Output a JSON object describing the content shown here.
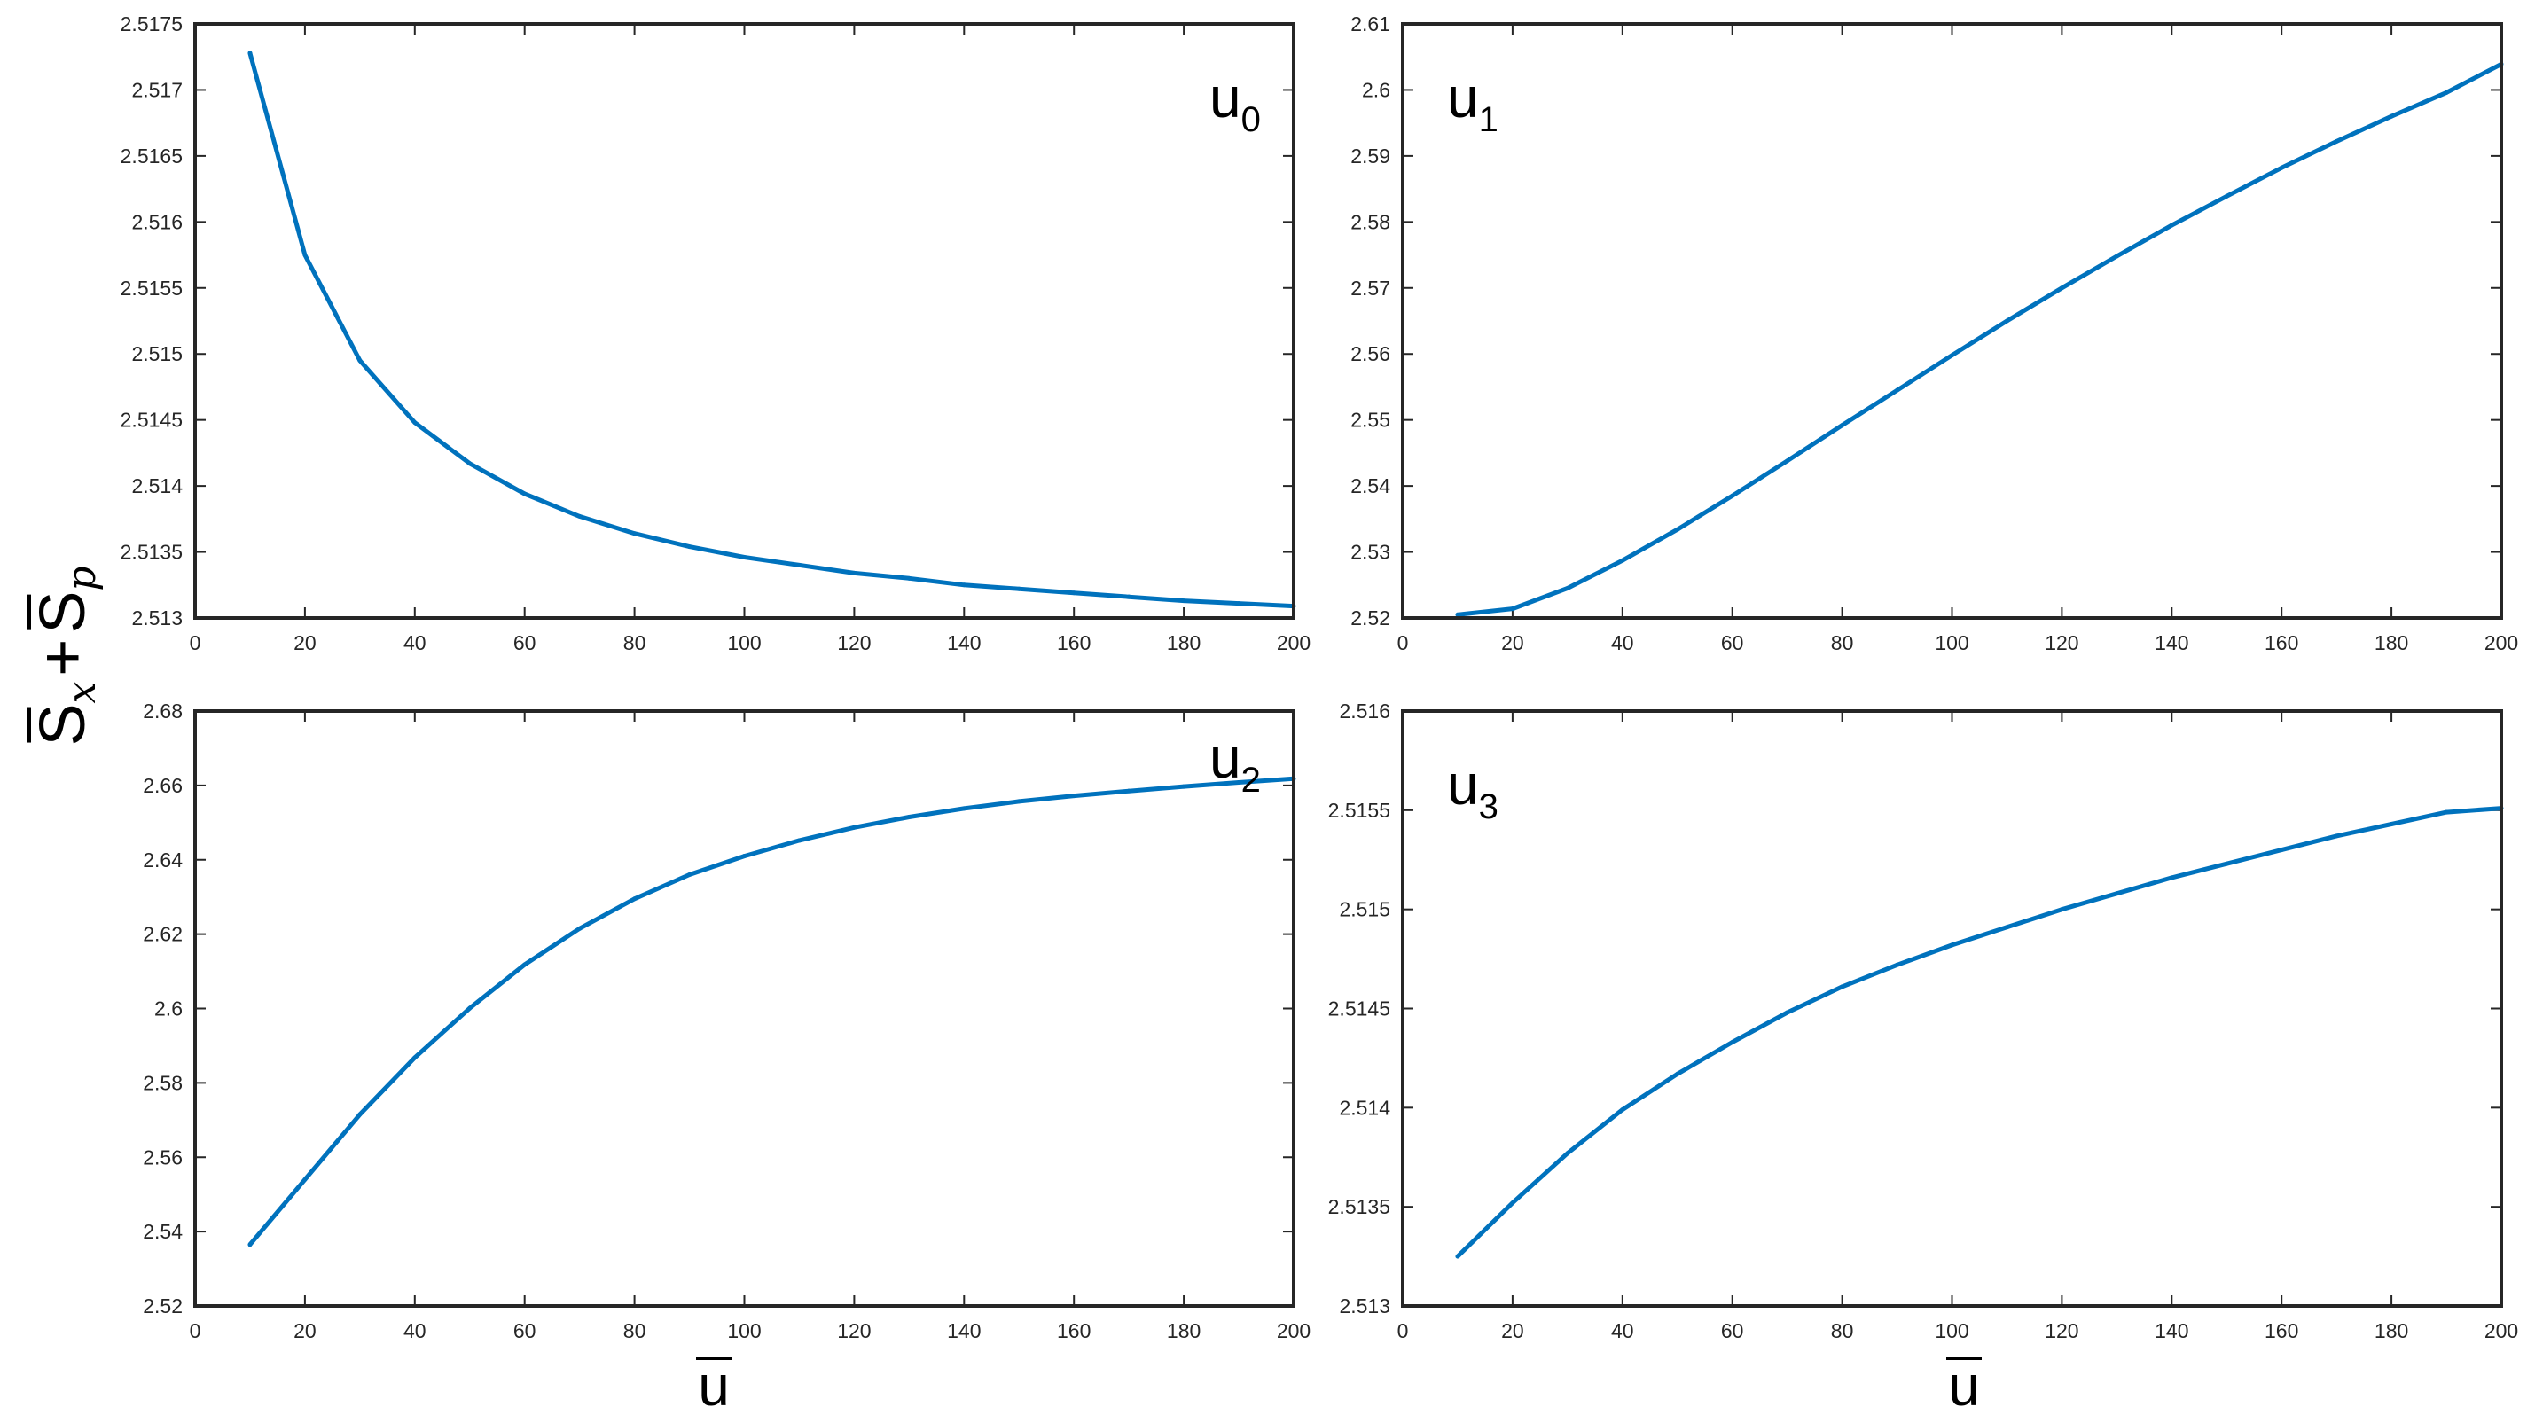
{
  "figure": {
    "ylabel": {
      "S1": "S",
      "sub1": "x",
      "plus": "+",
      "S2": "S",
      "sub2": "p"
    },
    "xlabel": "u",
    "line_color": "#0072BD"
  },
  "chart_data": [
    {
      "type": "line",
      "panel_label": {
        "base": "u",
        "sub": "0"
      },
      "xlim": [
        0,
        200
      ],
      "ylim": [
        2.513,
        2.5175
      ],
      "xticks": [
        "0",
        "20",
        "40",
        "60",
        "80",
        "100",
        "120",
        "140",
        "160",
        "180",
        "200"
      ],
      "yticks": [
        "2.513",
        "2.5135",
        "2.514",
        "2.5145",
        "2.515",
        "2.5155",
        "2.516",
        "2.5165",
        "2.517",
        "2.5175"
      ],
      "grid": false,
      "x": [
        10,
        20,
        30,
        40,
        50,
        60,
        70,
        80,
        90,
        100,
        110,
        120,
        130,
        140,
        150,
        160,
        170,
        180,
        190,
        200
      ],
      "y": [
        2.51728,
        2.51575,
        2.51495,
        2.51448,
        2.51417,
        2.51394,
        2.51377,
        2.51364,
        2.51354,
        2.51346,
        2.5134,
        2.51334,
        2.5133,
        2.51325,
        2.51322,
        2.51319,
        2.51316,
        2.51313,
        2.51311,
        2.51309
      ]
    },
    {
      "type": "line",
      "panel_label": {
        "base": "u",
        "sub": "1"
      },
      "xlim": [
        0,
        200
      ],
      "ylim": [
        2.52,
        2.61
      ],
      "xticks": [
        "0",
        "20",
        "40",
        "60",
        "80",
        "100",
        "120",
        "140",
        "160",
        "180",
        "200"
      ],
      "yticks": [
        "2.52",
        "2.53",
        "2.54",
        "2.55",
        "2.56",
        "2.57",
        "2.58",
        "2.59",
        "2.6",
        "2.61"
      ],
      "grid": false,
      "x": [
        10,
        20,
        30,
        40,
        50,
        60,
        70,
        80,
        90,
        100,
        110,
        120,
        130,
        140,
        150,
        160,
        170,
        180,
        190,
        200
      ],
      "y": [
        2.5205,
        2.5214,
        2.5245,
        2.5287,
        2.5334,
        2.5385,
        2.5438,
        2.5492,
        2.5545,
        2.5598,
        2.565,
        2.57,
        2.5748,
        2.5795,
        2.5839,
        2.5882,
        2.5922,
        2.596,
        2.5996,
        2.6039
      ]
    },
    {
      "type": "line",
      "panel_label": {
        "base": "u",
        "sub": "2"
      },
      "xlim": [
        0,
        200
      ],
      "ylim": [
        2.52,
        2.68
      ],
      "xticks": [
        "0",
        "20",
        "40",
        "60",
        "80",
        "100",
        "120",
        "140",
        "160",
        "180",
        "200"
      ],
      "yticks": [
        "2.52",
        "2.54",
        "2.56",
        "2.58",
        "2.6",
        "2.62",
        "2.64",
        "2.66",
        "2.68"
      ],
      "grid": false,
      "x": [
        10,
        20,
        30,
        40,
        50,
        60,
        70,
        80,
        90,
        100,
        110,
        120,
        130,
        140,
        150,
        160,
        170,
        180,
        190,
        200
      ],
      "y": [
        2.5365,
        2.554,
        2.5715,
        2.5868,
        2.6001,
        2.6118,
        2.6215,
        2.6295,
        2.636,
        2.641,
        2.6452,
        2.6487,
        2.6515,
        2.6538,
        2.6557,
        2.6572,
        2.6585,
        2.6597,
        2.6608,
        2.6618
      ]
    },
    {
      "type": "line",
      "panel_label": {
        "base": "u",
        "sub": "3"
      },
      "xlim": [
        0,
        200
      ],
      "ylim": [
        2.513,
        2.516
      ],
      "xticks": [
        "0",
        "20",
        "40",
        "60",
        "80",
        "100",
        "120",
        "140",
        "160",
        "180",
        "200"
      ],
      "yticks": [
        "2.513",
        "2.5135",
        "2.514",
        "2.5145",
        "2.515",
        "2.5155",
        "2.516"
      ],
      "grid": false,
      "x": [
        10,
        20,
        30,
        40,
        50,
        60,
        70,
        80,
        90,
        100,
        110,
        120,
        130,
        140,
        150,
        160,
        170,
        180,
        190,
        200
      ],
      "y": [
        2.51325,
        2.51352,
        2.51377,
        2.51399,
        2.51417,
        2.51433,
        2.51448,
        2.51461,
        2.51472,
        2.51482,
        2.51491,
        2.515,
        2.51508,
        2.51516,
        2.51523,
        2.5153,
        2.51537,
        2.51543,
        2.51549,
        2.51551
      ]
    }
  ]
}
